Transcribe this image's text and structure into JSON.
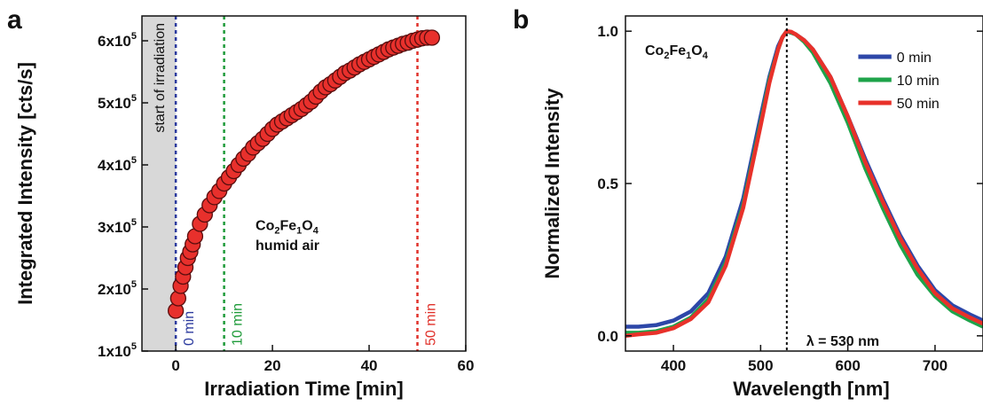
{
  "chart_data": [
    {
      "panel": "a",
      "type": "scatter",
      "xlabel": "Irradiation Time [min]",
      "ylabel": "Integrated Intensity [cts/s]",
      "xlim": [
        -7,
        60
      ],
      "ylim": [
        1,
        6.4
      ],
      "y_unit_note": "x10^5",
      "x_ticks": [
        0,
        20,
        40,
        60
      ],
      "y_ticks": [
        1,
        2,
        3,
        4,
        5,
        6
      ],
      "y_tick_labels": [
        "1x10",
        "2x10",
        "3x10",
        "4x10",
        "5x10",
        "6x10"
      ],
      "y_tick_exp": "5",
      "shaded_region": {
        "x": [
          -7,
          0
        ],
        "label": "start of irradiation"
      },
      "markers": [
        {
          "x": 0,
          "label": "0 min",
          "color": "#2b3a9e"
        },
        {
          "x": 10,
          "label": "10 min",
          "color": "#1f9b3a"
        },
        {
          "x": 50,
          "label": "50 min",
          "color": "#e0312a"
        }
      ],
      "annotation": {
        "material": "Co",
        "humid": "humid air"
      },
      "x": [
        0,
        0.5,
        1,
        1.5,
        2,
        2.5,
        3,
        3.5,
        4,
        5,
        6,
        7,
        8,
        9,
        10,
        11,
        12,
        13,
        14,
        15,
        16,
        17,
        18,
        19,
        20,
        21,
        22,
        23,
        24,
        25,
        26,
        27,
        28,
        29,
        30,
        31,
        32,
        33,
        34,
        35,
        36,
        37,
        38,
        39,
        40,
        41,
        42,
        43,
        44,
        45,
        46,
        47,
        48,
        49,
        50,
        51,
        52,
        53
      ],
      "y": [
        1.65,
        1.85,
        2.05,
        2.2,
        2.35,
        2.5,
        2.6,
        2.72,
        2.85,
        3.05,
        3.2,
        3.35,
        3.48,
        3.58,
        3.7,
        3.8,
        3.9,
        4.0,
        4.1,
        4.18,
        4.28,
        4.35,
        4.42,
        4.5,
        4.58,
        4.65,
        4.7,
        4.75,
        4.8,
        4.85,
        4.9,
        4.96,
        5.02,
        5.1,
        5.18,
        5.25,
        5.3,
        5.36,
        5.42,
        5.48,
        5.52,
        5.57,
        5.62,
        5.66,
        5.7,
        5.74,
        5.78,
        5.82,
        5.86,
        5.89,
        5.92,
        5.95,
        5.97,
        6.0,
        6.02,
        6.04,
        6.05,
        6.05
      ]
    },
    {
      "panel": "b",
      "type": "line",
      "xlabel": "Wavelength [nm]",
      "ylabel": "Normalized Intensity",
      "xlim": [
        345,
        755
      ],
      "ylim": [
        -0.05,
        1.05
      ],
      "x_ticks": [
        400,
        500,
        600,
        700
      ],
      "y_ticks": [
        0.0,
        0.5,
        1.0
      ],
      "y_tick_labels": [
        "0.0",
        "0.5",
        "1.0"
      ],
      "vline": {
        "x": 530,
        "label": "λ = 530 nm"
      },
      "annotation": {
        "material": "Co"
      },
      "legend_position": "top-right",
      "series": [
        {
          "name": "0 min",
          "color": "#2d47a8",
          "x": [
            345,
            360,
            380,
            400,
            420,
            440,
            460,
            480,
            500,
            510,
            520,
            525,
            530,
            535,
            540,
            550,
            560,
            580,
            600,
            620,
            640,
            660,
            680,
            700,
            720,
            740,
            755
          ],
          "y": [
            0.03,
            0.03,
            0.035,
            0.05,
            0.08,
            0.14,
            0.26,
            0.45,
            0.72,
            0.85,
            0.95,
            0.98,
            1.0,
            0.995,
            0.99,
            0.97,
            0.94,
            0.85,
            0.72,
            0.58,
            0.45,
            0.33,
            0.23,
            0.15,
            0.1,
            0.07,
            0.05
          ]
        },
        {
          "name": "10 min",
          "color": "#1ea34a",
          "x": [
            345,
            360,
            380,
            400,
            420,
            440,
            460,
            480,
            500,
            510,
            520,
            525,
            530,
            535,
            540,
            550,
            560,
            580,
            600,
            620,
            640,
            660,
            680,
            700,
            720,
            740,
            755
          ],
          "y": [
            0.01,
            0.01,
            0.015,
            0.03,
            0.06,
            0.12,
            0.24,
            0.43,
            0.7,
            0.84,
            0.94,
            0.98,
            1.0,
            0.995,
            0.99,
            0.965,
            0.93,
            0.83,
            0.7,
            0.55,
            0.42,
            0.3,
            0.2,
            0.13,
            0.08,
            0.05,
            0.03
          ]
        },
        {
          "name": "50 min",
          "color": "#e8312a",
          "x": [
            345,
            360,
            380,
            400,
            420,
            440,
            460,
            480,
            500,
            510,
            520,
            525,
            530,
            535,
            540,
            550,
            560,
            580,
            600,
            620,
            640,
            660,
            680,
            700,
            720,
            740,
            755
          ],
          "y": [
            0.0,
            0.005,
            0.01,
            0.025,
            0.055,
            0.11,
            0.23,
            0.42,
            0.69,
            0.83,
            0.94,
            0.98,
            1.0,
            0.998,
            0.99,
            0.97,
            0.94,
            0.85,
            0.72,
            0.57,
            0.44,
            0.32,
            0.22,
            0.14,
            0.09,
            0.06,
            0.04
          ]
        }
      ]
    }
  ],
  "panels": {
    "a_label": "a",
    "b_label": "b"
  },
  "text": {
    "a_material_main": "Co",
    "a_material_sub1": "2",
    "a_material_mid": "Fe",
    "a_material_sub2": "1",
    "a_material_o": "O",
    "a_material_sub3": "4",
    "a_humid": "humid air",
    "a_shade_label": "start of irradiation",
    "b_material_main": "Co",
    "b_material_sub1": "2",
    "b_material_mid": "Fe",
    "b_material_sub2": "1",
    "b_material_o": "O",
    "b_material_sub3": "4",
    "b_vline_label": "λ = 530 nm"
  },
  "colors": {
    "point_fill": "#e8302c",
    "point_stroke": "#5a0e0e",
    "shade": "#d8d8d8",
    "blue": "#2b3a9e",
    "green": "#1f9b3a",
    "red": "#e0312a"
  }
}
